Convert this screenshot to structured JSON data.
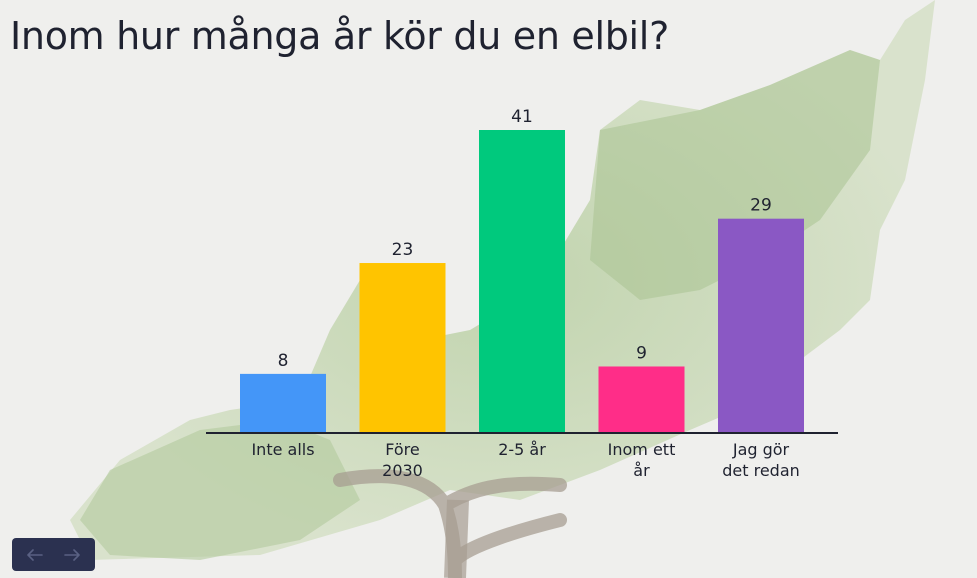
{
  "title": "Inom hur många år kör du en elbil?",
  "chart_data": {
    "type": "bar",
    "title": "Inom hur många år kör du en elbil?",
    "categories": [
      [
        "Inte alls"
      ],
      [
        "Före",
        "2030"
      ],
      [
        "2-5 år"
      ],
      [
        "Inom ett",
        "år"
      ],
      [
        "Jag gör",
        "det redan"
      ]
    ],
    "values": [
      8,
      23,
      41,
      9,
      29
    ],
    "colors": [
      "#4496f8",
      "#ffc400",
      "#00c97d",
      "#ff2d88",
      "#8a58c4"
    ],
    "ylim": [
      0,
      41
    ],
    "grid": false,
    "legend": "none"
  },
  "nav": {
    "prev_icon": "arrow-left-icon",
    "next_icon": "arrow-right-icon"
  }
}
